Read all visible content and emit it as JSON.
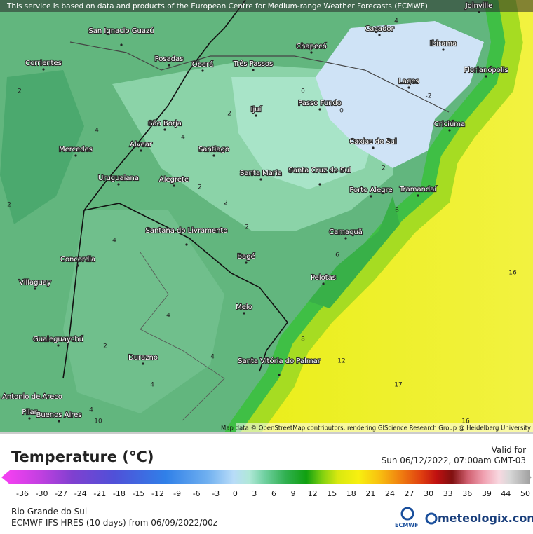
{
  "banner": "This service is based on data and products of the European Centre for Medium-range Weather Forecasts (ECMWF)",
  "attribution": "Map data © OpenStreetMap contributors, rendering GIScience Research Group @ Heidelberg University",
  "cities": [
    "Joinville",
    "Caçador",
    "San Ignacio Guazú",
    "Chapecó",
    "Ibirama",
    "Posadas",
    "Oberá",
    "Três Passos",
    "Corrientes",
    "Florianópolis",
    "Lages",
    "Passo Fundo",
    "Ijuí",
    "São Borja",
    "Criciúma",
    "Caxias do Sul",
    "Alvear",
    "Mercedes",
    "Santiago",
    "Santa Maria",
    "Santa Cruz do Sul",
    "Uruguaiana",
    "Alegrete",
    "Porto Alegre",
    "Tramandaí",
    "Santana do Livramento",
    "Camaquã",
    "Concordia",
    "Bagé",
    "Villaguay",
    "Pelotas",
    "Melo",
    "Gualeguaychú",
    "Durazno",
    "Santa Vitória do Palmar",
    "Buenos Aires",
    "San Antonio de Areco",
    "Pilar"
  ],
  "contour_labels": [
    17,
    16,
    16,
    12,
    -2,
    0,
    0,
    2,
    2,
    2,
    2,
    2,
    2,
    4,
    4,
    4,
    4,
    4,
    4,
    4,
    6,
    6,
    8,
    10,
    2,
    2,
    4
  ],
  "legend": {
    "title": "Temperature (°C)",
    "valid_label": "Valid for",
    "valid_time": "Sun 06/12/2022, 07:00am GMT-03",
    "ticks": [
      -36,
      -30,
      -27,
      -24,
      -21,
      -18,
      -15,
      -12,
      -9,
      -6,
      -3,
      0,
      3,
      6,
      9,
      12,
      15,
      18,
      21,
      24,
      27,
      30,
      33,
      36,
      39,
      44,
      50
    ]
  },
  "footer": {
    "region": "Rio Grande do Sul",
    "model": "ECMWF IFS HRES (10 days) from 06/09/2022/00z",
    "ecmwf_logo": "ECMWF",
    "brand": "meteologix.com"
  }
}
